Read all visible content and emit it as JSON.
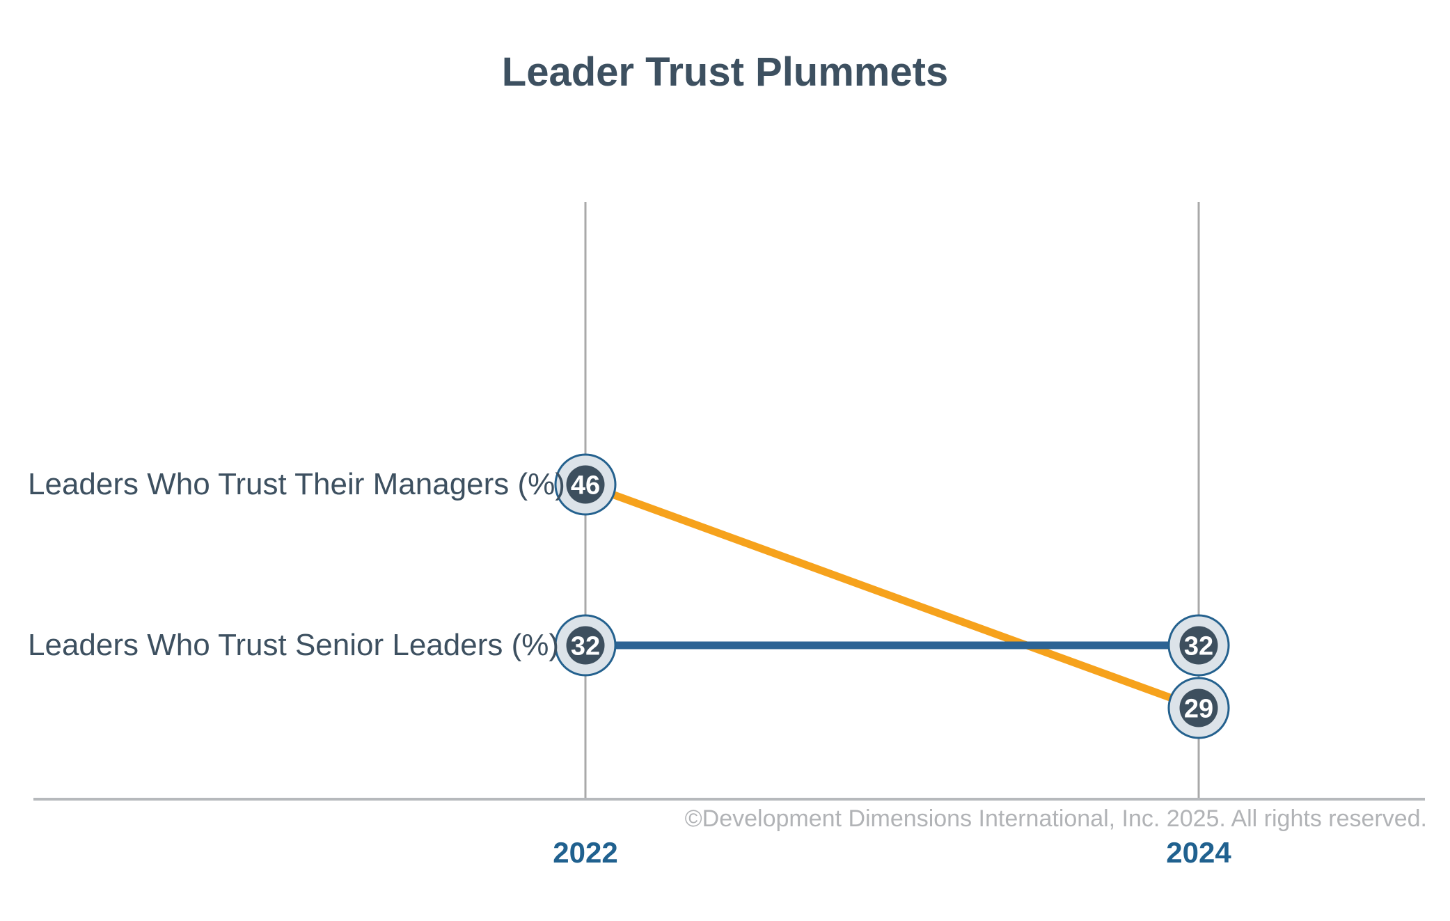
{
  "chart": {
    "copyright": "©Development Dimensions International, Inc. 2025. All rights reserved."
  },
  "chart_data": {
    "type": "line",
    "variant": "slopegraph",
    "title": "Leader Trust Plummets",
    "categories": [
      "2022",
      "2024"
    ],
    "series": [
      {
        "name": "Leaders Who Trust Their Managers (%)",
        "values": [
          46,
          29
        ],
        "color": "#F6A21C"
      },
      {
        "name": "Leaders Who Trust Senior Leaders (%)",
        "values": [
          32,
          32
        ],
        "color": "#2C6394"
      }
    ],
    "xlabel": "",
    "ylabel": "",
    "grid": {
      "x_gridlines": true,
      "y_gridlines": false
    },
    "legend_position": "left-inline-row-labels",
    "colors": {
      "title_text": "#3D5060",
      "row_label_text": "#3D5060",
      "year_label_text": "#20618F",
      "copyright_text": "#B1B3B6",
      "gridline": "#A9A9A9",
      "axis_line": "#B6B9BC",
      "marker_outer_fill": "#DCE3E9",
      "marker_border": "#24618E",
      "marker_inner_fill": "#3D4F5E",
      "marker_value_text": "#FFFFFF"
    }
  }
}
